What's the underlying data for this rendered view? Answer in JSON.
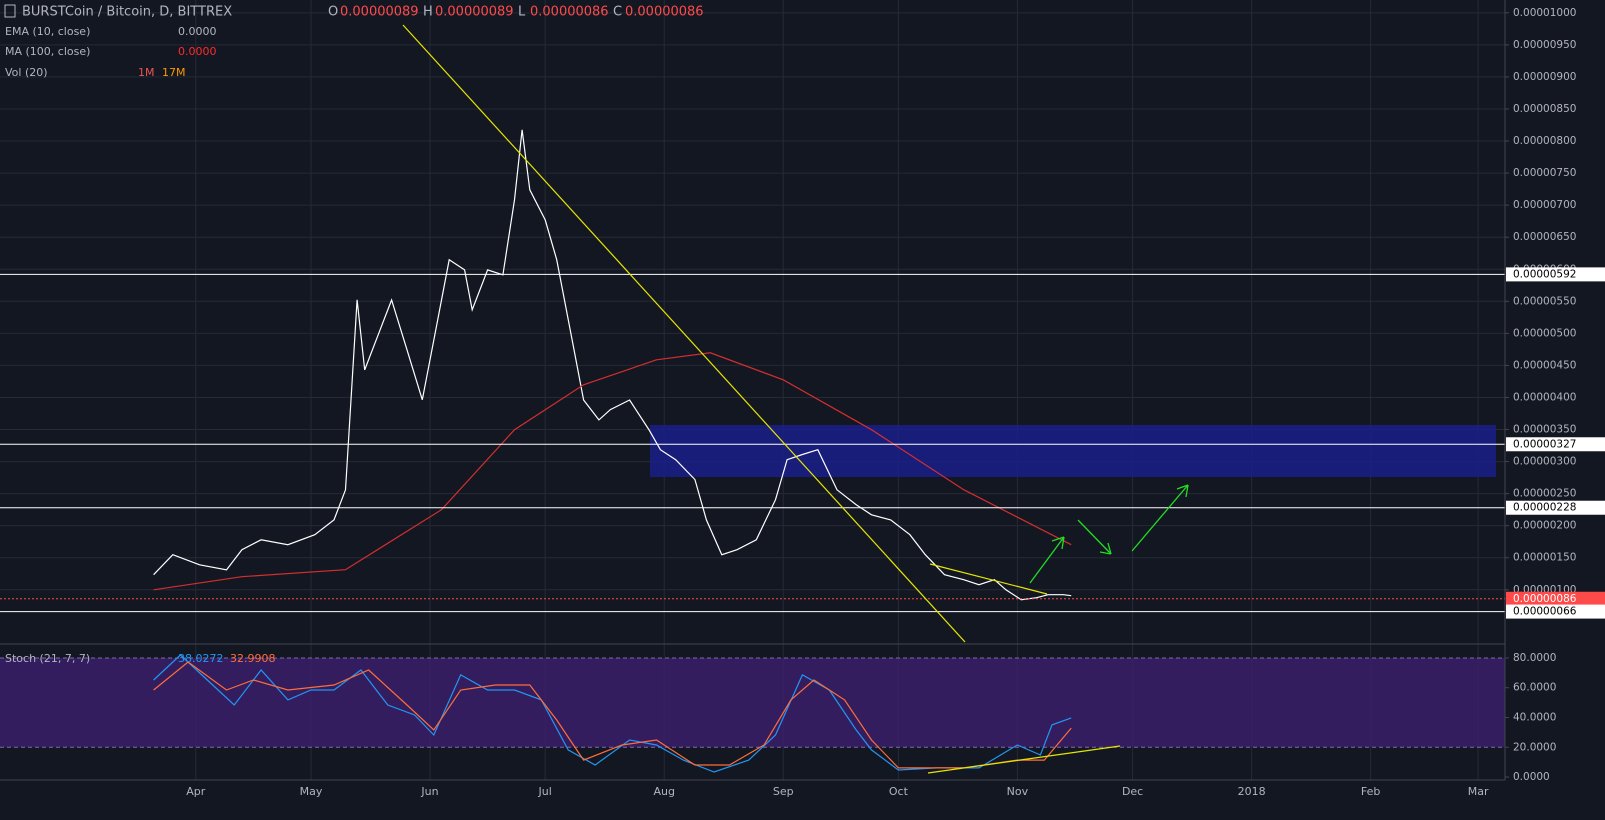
{
  "header": {
    "symbol": "BURSTCoin / Bitcoin, D, BITTREX",
    "ohlc": [
      {
        "key": "O",
        "text": "0.00000089"
      },
      {
        "key": "H",
        "text": "0.00000089"
      },
      {
        "key": "L",
        "text": "0.00000086"
      },
      {
        "key": "C",
        "text": "0.00000086"
      }
    ],
    "volume": {
      "name": "Vol (20)",
      "values": [
        "1M",
        "17M"
      ]
    }
  },
  "chart_data": [
    {
      "type": "line",
      "xlim": [
        -20,
        372
      ],
      "xticks": [
        {
          "value": 31,
          "label": "Apr"
        },
        {
          "value": 61,
          "label": "May"
        },
        {
          "value": 92,
          "label": "Jun"
        },
        {
          "value": 122,
          "label": "Jul"
        },
        {
          "value": 153,
          "label": "Aug"
        },
        {
          "value": 184,
          "label": "Sep"
        },
        {
          "value": 214,
          "label": "Oct"
        },
        {
          "value": 245,
          "label": "Nov"
        },
        {
          "value": 275,
          "label": "Dec"
        },
        {
          "value": 306,
          "label": "2018"
        },
        {
          "value": 337,
          "label": "Feb"
        },
        {
          "value": 365,
          "label": "Mar"
        }
      ],
      "ylim": [
        1.7e-07,
        1.02e-05
      ],
      "yticks": [
        {
          "value": 1e-05,
          "label": "0.00001000"
        },
        {
          "value": 9.5e-06,
          "label": "0.00000950"
        },
        {
          "value": 9e-06,
          "label": "0.00000900"
        },
        {
          "value": 8.5e-06,
          "label": "0.00000850"
        },
        {
          "value": 8e-06,
          "label": "0.00000800"
        },
        {
          "value": 7.5e-06,
          "label": "0.00000750"
        },
        {
          "value": 7e-06,
          "label": "0.00000700"
        },
        {
          "value": 6.5e-06,
          "label": "0.00000650"
        },
        {
          "value": 6e-06,
          "label": "0.00000600"
        },
        {
          "value": 5.5e-06,
          "label": "0.00000550"
        },
        {
          "value": 5e-06,
          "label": "0.00000500"
        },
        {
          "value": 4.5e-06,
          "label": "0.00000450"
        },
        {
          "value": 4e-06,
          "label": "0.00000400"
        },
        {
          "value": 3.5e-06,
          "label": "0.00000350"
        },
        {
          "value": 3e-06,
          "label": "0.00000300"
        },
        {
          "value": 2.5e-06,
          "label": "0.00000250"
        },
        {
          "value": 2e-06,
          "label": "0.00000200"
        },
        {
          "value": 1.5e-06,
          "label": "0.00000150"
        },
        {
          "value": 1e-06,
          "label": "0.00000100"
        }
      ],
      "grid": true,
      "levels": [
        {
          "value": 5.92e-06,
          "label": "0.00000592",
          "color": "#ffffff"
        },
        {
          "value": 3.27e-06,
          "label": "0.00000327",
          "color": "#ffffff"
        },
        {
          "value": 2.28e-06,
          "label": "0.00000228",
          "color": "#ffffff"
        },
        {
          "value": 8.6e-07,
          "label": "0.00000086",
          "color": "#ff4a4a"
        },
        {
          "value": 6.6e-07,
          "label": "0.00000066",
          "color": "#ffffff"
        }
      ],
      "series": [
        {
          "name": "EMA (10, close)",
          "value_label": "0.0000",
          "color": "#ffffff",
          "x": [
            20,
            25,
            32,
            39,
            43,
            48,
            55,
            62,
            67,
            70,
            73,
            75,
            79,
            82,
            86,
            90,
            94,
            97,
            101,
            103,
            107,
            111,
            114,
            116,
            118,
            122,
            125,
            129,
            132,
            136,
            139,
            144,
            149,
            152,
            156,
            161,
            164,
            168,
            172,
            177,
            182,
            185,
            189,
            193,
            198,
            203,
            207,
            212,
            217,
            221,
            226,
            231,
            235,
            239,
            242,
            246,
            250,
            253,
            257,
            259
          ],
          "values": [
            1.235e-06,
            1.547e-06,
            1.39e-06,
            1.31e-06,
            1.625e-06,
            1.78e-06,
            1.703e-06,
            1.86e-06,
            2.09e-06,
            2.56e-06,
            5.524e-06,
            4.43e-06,
            5.056e-06,
            5.52e-06,
            4.744e-06,
            3.964e-06,
            5.21e-06,
            6.148e-06,
            5.99e-06,
            5.368e-06,
            5.99e-06,
            5.914e-06,
            7.084e-06,
            8.175e-06,
            7.24e-06,
            6.77e-06,
            6.15e-06,
            4.9e-06,
            3.96e-06,
            3.65e-06,
            3.81e-06,
            3.96e-06,
            3.5e-06,
            3.185e-06,
            3.03e-06,
            2.72e-06,
            2.09e-06,
            1.547e-06,
            1.625e-06,
            1.78e-06,
            2.405e-06,
            3.03e-06,
            3.11e-06,
            3.185e-06,
            2.56e-06,
            2.327e-06,
            2.17e-06,
            2.09e-06,
            1.86e-06,
            1.547e-06,
            1.235e-06,
            1.157e-06,
            1.08e-06,
            1.157e-06,
            1e-06,
            8.45e-07,
            8.76e-07,
            9.23e-07,
            9.23e-07,
            9.08e-07
          ]
        },
        {
          "name": "MA (100, close)",
          "value_label": "0.0000",
          "color": "#d32f2f",
          "x": [
            20,
            43,
            70,
            95,
            114,
            132,
            151,
            165,
            184,
            207,
            231,
            259
          ],
          "values": [
            1e-06,
            1.204e-06,
            1.313e-06,
            2.249e-06,
            3.497e-06,
            4.198e-06,
            4.588e-06,
            4.697e-06,
            4.276e-06,
            3.497e-06,
            2.562e-06,
            1.703e-06
          ]
        }
      ]
    },
    {
      "type": "line",
      "title": "Stoch (21, 7, 7)",
      "ylim": [
        -2,
        88.7
      ],
      "yticks": [
        {
          "value": 80,
          "label": "80.0000"
        },
        {
          "value": 60,
          "label": "60.0000"
        },
        {
          "value": 40,
          "label": "40.0000"
        },
        {
          "value": 20,
          "label": "20.0000"
        },
        {
          "value": 0,
          "label": "0.0000"
        }
      ],
      "band": [
        20,
        80
      ],
      "series": [
        {
          "value_label": "38.0272",
          "color": "#2196f3",
          "x": [
            20,
            27,
            34,
            41,
            48,
            55,
            61,
            67,
            74,
            81,
            88,
            93,
            100,
            107,
            114,
            121,
            128,
            135,
            144,
            151,
            158,
            166,
            175,
            182,
            189,
            196,
            203,
            207,
            214,
            224,
            235,
            245,
            251,
            254,
            259
          ],
          "values": [
            65.2,
            82,
            65.2,
            48.4,
            71.9,
            51.8,
            58.5,
            58.5,
            71.9,
            48.4,
            41.7,
            28.2,
            68.6,
            58.5,
            58.5,
            51.8,
            18.2,
            8.1,
            24.9,
            21.5,
            11.4,
            3.4,
            11.4,
            28.2,
            68.6,
            58.5,
            31.6,
            18.2,
            4.7,
            6.1,
            6.1,
            21.5,
            14.8,
            35,
            39.7
          ]
        },
        {
          "value_label": "32.9908",
          "color": "#ff6d3a",
          "x": [
            20,
            29,
            39,
            46,
            55,
            67,
            76,
            86,
            93,
            100,
            109,
            118,
            125,
            132,
            142,
            151,
            161,
            170,
            179,
            186,
            192,
            200,
            207,
            214,
            231,
            245,
            252,
            259
          ],
          "values": [
            58.5,
            77.3,
            58.5,
            65.2,
            58.5,
            61.8,
            71.9,
            48.4,
            31.6,
            58.5,
            61.8,
            61.8,
            38.3,
            11.4,
            21.5,
            24.9,
            8.1,
            8.1,
            21.5,
            51.8,
            65.2,
            51.8,
            24.9,
            6.1,
            6.1,
            11.4,
            11.4,
            32.9
          ]
        }
      ]
    }
  ]
}
